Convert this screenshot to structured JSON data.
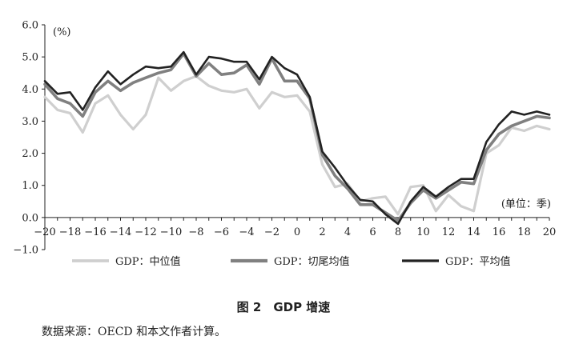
{
  "chart_data": {
    "type": "line",
    "title": "",
    "y_unit": "(%)",
    "x_unit": "(单位：季)",
    "x": [
      -20,
      -19,
      -18,
      -17,
      -16,
      -15,
      -14,
      -13,
      -12,
      -11,
      -10,
      -9,
      -8,
      -7,
      -6,
      -5,
      -4,
      -3,
      -2,
      -1,
      0,
      1,
      2,
      3,
      4,
      5,
      6,
      7,
      8,
      9,
      10,
      11,
      12,
      13,
      14,
      15,
      16,
      17,
      18,
      19,
      20
    ],
    "x_ticks": [
      -20,
      -18,
      -16,
      -14,
      -12,
      -10,
      -8,
      -6,
      -4,
      -2,
      0,
      2,
      4,
      6,
      8,
      10,
      12,
      14,
      16,
      18,
      20
    ],
    "x_tick_labels": [
      "−20",
      "−18",
      "−16",
      "−14",
      "−12",
      "−10",
      "−8",
      "−6",
      "−4",
      "−2",
      "0",
      "2",
      "4",
      "6",
      "8",
      "10",
      "12",
      "14",
      "16",
      "18",
      "20"
    ],
    "xlim": [
      -20,
      20
    ],
    "y_ticks": [
      -1.0,
      0.0,
      1.0,
      2.0,
      3.0,
      4.0,
      5.0,
      6.0
    ],
    "y_tick_labels": [
      "−1.0",
      "0.0",
      "1.0",
      "2.0",
      "3.0",
      "4.0",
      "5.0",
      "6.0"
    ],
    "ylim": [
      -1.0,
      6.0
    ],
    "grid": false,
    "legend_position": "bottom",
    "series": [
      {
        "name": "GDP：中位值",
        "color": "#cfcfcf",
        "values": [
          3.75,
          3.35,
          3.25,
          2.65,
          3.55,
          3.8,
          3.2,
          2.75,
          3.2,
          4.35,
          3.95,
          4.25,
          4.4,
          4.1,
          3.95,
          3.9,
          4.0,
          3.4,
          3.9,
          3.75,
          3.8,
          3.3,
          1.65,
          0.95,
          1.05,
          0.5,
          0.6,
          0.65,
          0.1,
          0.95,
          1.0,
          0.2,
          0.7,
          0.35,
          0.2,
          2.0,
          2.25,
          2.8,
          2.7,
          2.85,
          2.75
        ]
      },
      {
        "name": "GDP：切尾均值",
        "color": "#808080",
        "values": [
          4.15,
          3.7,
          3.55,
          3.15,
          3.9,
          4.25,
          3.95,
          4.2,
          4.35,
          4.5,
          4.6,
          5.1,
          4.4,
          4.8,
          4.45,
          4.5,
          4.75,
          4.15,
          4.95,
          4.25,
          4.25,
          3.7,
          1.95,
          1.3,
          0.9,
          0.4,
          0.4,
          0.15,
          -0.1,
          0.45,
          0.85,
          0.6,
          0.85,
          1.1,
          1.05,
          2.1,
          2.6,
          2.85,
          3.0,
          3.15,
          3.1
        ]
      },
      {
        "name": "GDP：平均值",
        "color": "#222222",
        "values": [
          4.25,
          3.85,
          3.9,
          3.35,
          4.05,
          4.55,
          4.15,
          4.45,
          4.7,
          4.65,
          4.7,
          5.15,
          4.45,
          5.0,
          4.95,
          4.85,
          4.85,
          4.3,
          5.0,
          4.65,
          4.45,
          3.75,
          2.05,
          1.55,
          1.0,
          0.55,
          0.5,
          0.1,
          -0.2,
          0.5,
          0.95,
          0.65,
          0.95,
          1.2,
          1.2,
          2.35,
          2.9,
          3.3,
          3.2,
          3.3,
          3.2
        ]
      }
    ]
  },
  "figure": {
    "title": "图 2　GDP 增速",
    "source": "数据来源：OECD 和本文作者计算。"
  }
}
